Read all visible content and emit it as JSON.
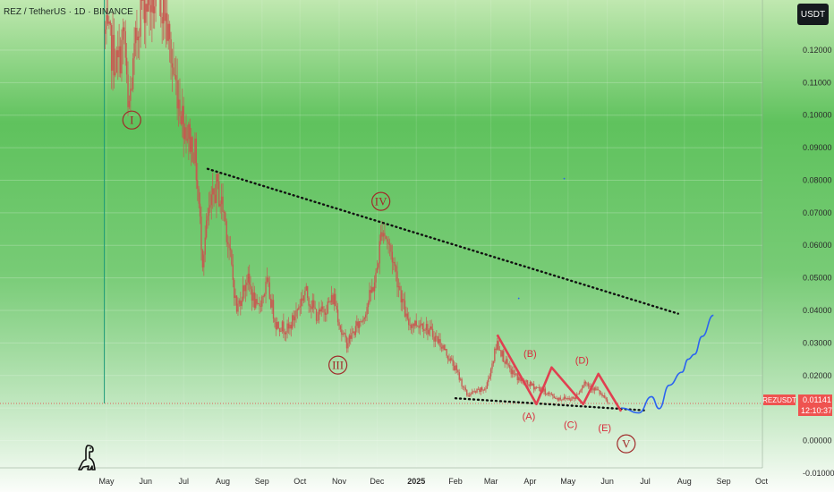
{
  "header": {
    "symbol_title": "REZ / TetherUS · 1D · BINANCE",
    "currency_button": "USDT"
  },
  "price_label": {
    "ticker": "REZUSDT",
    "price": "0.01141",
    "countdown": "12:10:37",
    "ticker_color": "#ef5350"
  },
  "logo": {
    "name": "dinosaur-logo"
  },
  "colors": {
    "bg_top": "#c0e8b0",
    "bg_bottom": "#fbfdfa",
    "bg_mid": "#5fc25d",
    "candle_color": "#c9554f",
    "wave_path": "#e04050",
    "wave_label": "#a02a2a",
    "projection": "#2b63f0",
    "trendline": "#111111",
    "current_price_line": "#e0605a"
  },
  "chart_data": {
    "type": "candlestick",
    "title": "REZ / TetherUS · 1D · BINANCE",
    "ylim": [
      -0.01,
      0.135
    ],
    "y_ticks": [
      "0.12000",
      "0.11000",
      "0.10000",
      "0.09000",
      "0.08000",
      "0.07000",
      "0.06000",
      "0.05000",
      "0.04000",
      "0.03000",
      "0.02000",
      "0.01000",
      "0.00000",
      "-0.01000"
    ],
    "y_tick_values": [
      0.12,
      0.11,
      0.1,
      0.09,
      0.08,
      0.07,
      0.06,
      0.05,
      0.04,
      0.03,
      0.02,
      0.01,
      0.0,
      -0.01
    ],
    "x_ticks": [
      "May",
      "Jun",
      "Jul",
      "Aug",
      "Sep",
      "Oct",
      "Nov",
      "Dec",
      "2025",
      "Feb",
      "Mar",
      "Apr",
      "May",
      "Jun",
      "Jul",
      "Aug",
      "Sep",
      "Oct"
    ],
    "x_tick_dates": [
      "2024-05-01",
      "2024-06-01",
      "2024-07-01",
      "2024-08-01",
      "2024-09-01",
      "2024-10-01",
      "2024-11-01",
      "2024-12-01",
      "2025-01-01",
      "2025-02-01",
      "2025-03-01",
      "2025-04-01",
      "2025-05-01",
      "2025-06-01",
      "2025-07-01",
      "2025-08-01",
      "2025-09-01",
      "2025-10-01"
    ],
    "x_range": [
      "2024-04-01",
      "2025-10-25"
    ],
    "current_price": 0.01141,
    "price_keypoints": [
      [
        "2024-04-30",
        0.125
      ],
      [
        "2024-05-10",
        0.115
      ],
      [
        "2024-05-15",
        0.125
      ],
      [
        "2024-05-18",
        0.1
      ],
      [
        "2024-05-28",
        0.135
      ],
      [
        "2024-06-05",
        0.135
      ],
      [
        "2024-06-15",
        0.135
      ],
      [
        "2024-06-22",
        0.115
      ],
      [
        "2024-07-01",
        0.098
      ],
      [
        "2024-07-10",
        0.088
      ],
      [
        "2024-07-16",
        0.056
      ],
      [
        "2024-07-20",
        0.068
      ],
      [
        "2024-07-27",
        0.078
      ],
      [
        "2024-08-02",
        0.07
      ],
      [
        "2024-08-06",
        0.059
      ],
      [
        "2024-08-12",
        0.04
      ],
      [
        "2024-08-20",
        0.05
      ],
      [
        "2024-08-28",
        0.04
      ],
      [
        "2024-09-05",
        0.048
      ],
      [
        "2024-09-12",
        0.036
      ],
      [
        "2024-09-22",
        0.034
      ],
      [
        "2024-10-05",
        0.046
      ],
      [
        "2024-10-15",
        0.038
      ],
      [
        "2024-10-28",
        0.044
      ],
      [
        "2024-11-03",
        0.033
      ],
      [
        "2024-11-07",
        0.03
      ],
      [
        "2024-11-20",
        0.038
      ],
      [
        "2024-11-30",
        0.05
      ],
      [
        "2024-12-05",
        0.066
      ],
      [
        "2024-12-12",
        0.058
      ],
      [
        "2024-12-18",
        0.048
      ],
      [
        "2024-12-25",
        0.036
      ],
      [
        "2025-01-06",
        0.036
      ],
      [
        "2025-01-20",
        0.03
      ],
      [
        "2025-02-01",
        0.022
      ],
      [
        "2025-02-10",
        0.014
      ],
      [
        "2025-02-25",
        0.016
      ],
      [
        "2025-03-06",
        0.03
      ],
      [
        "2025-03-15",
        0.022
      ],
      [
        "2025-03-26",
        0.018
      ],
      [
        "2025-04-08",
        0.016
      ],
      [
        "2025-04-22",
        0.013
      ],
      [
        "2025-05-06",
        0.013
      ],
      [
        "2025-05-14",
        0.018
      ],
      [
        "2025-05-25",
        0.015
      ],
      [
        "2025-06-02",
        0.01141
      ]
    ],
    "resistance_trendline": [
      [
        "2024-07-20",
        0.0835
      ],
      [
        "2025-07-27",
        0.039
      ]
    ],
    "support_trendline": [
      [
        "2025-02-01",
        0.013
      ],
      [
        "2025-06-30",
        0.0093
      ]
    ],
    "abcde_path": [
      [
        "2025-03-06",
        0.0325
      ],
      [
        "2025-04-06",
        0.0112
      ],
      [
        "2025-04-18",
        0.0225
      ],
      [
        "2025-05-13",
        0.0112
      ],
      [
        "2025-05-25",
        0.0205
      ],
      [
        "2025-06-12",
        0.009
      ]
    ],
    "projection_path": [
      [
        "2025-06-12",
        0.01
      ],
      [
        "2025-06-26",
        0.0085
      ],
      [
        "2025-07-06",
        0.0135
      ],
      [
        "2025-07-12",
        0.0098
      ],
      [
        "2025-07-20",
        0.017
      ],
      [
        "2025-07-30",
        0.021
      ],
      [
        "2025-08-04",
        0.025
      ],
      [
        "2025-08-09",
        0.0265
      ],
      [
        "2025-08-15",
        0.032
      ],
      [
        "2025-08-24",
        0.0385
      ]
    ],
    "wave_labels": [
      {
        "text": "I",
        "date": "2024-05-21",
        "price": 0.0985,
        "circled": true
      },
      {
        "text": "III",
        "date": "2024-10-31",
        "price": 0.0232,
        "circled": true
      },
      {
        "text": "IV",
        "date": "2024-12-04",
        "price": 0.0735,
        "circled": true
      },
      {
        "text": "V",
        "date": "2025-06-16",
        "price": -0.001,
        "circled": true
      },
      {
        "text": "(A)",
        "date": "2025-03-31",
        "price": 0.0075,
        "circled": false
      },
      {
        "text": "(B)",
        "date": "2025-04-01",
        "price": 0.0268,
        "circled": false
      },
      {
        "text": "(C)",
        "date": "2025-05-03",
        "price": 0.005,
        "circled": false
      },
      {
        "text": "(D)",
        "date": "2025-05-12",
        "price": 0.0248,
        "circled": false
      },
      {
        "text": "(E)",
        "date": "2025-05-30",
        "price": 0.004,
        "circled": false
      }
    ]
  }
}
